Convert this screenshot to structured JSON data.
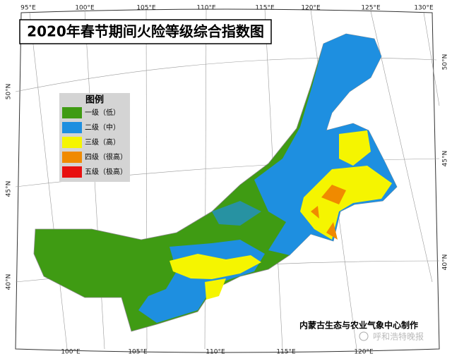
{
  "title": "2020年春节期间火险等级综合指数图",
  "legend": {
    "title": "图例",
    "items": [
      {
        "label": "一级（低）",
        "color": "#3f9b13"
      },
      {
        "label": "二级（中）",
        "color": "#1e8fe0"
      },
      {
        "label": "三级（高）",
        "color": "#f5f500"
      },
      {
        "label": "四级（很高）",
        "color": "#f08a00"
      },
      {
        "label": "五级（极高）",
        "color": "#e81010"
      }
    ]
  },
  "top_labels": [
    "95°E",
    "100°E",
    "105°E",
    "110°E",
    "115°E",
    "120°E",
    "125°E",
    "130°E"
  ],
  "bottom_labels": [
    "100°E",
    "105°E",
    "110°E",
    "115°E",
    "120°E"
  ],
  "left_labels": [
    "50°N",
    "45°N",
    "40°N"
  ],
  "right_labels": [
    "50°N",
    "45°N",
    "40°N"
  ],
  "credit": "内蒙古生态与农业气象中心制作",
  "watermark": "呼和浩特晚报"
}
